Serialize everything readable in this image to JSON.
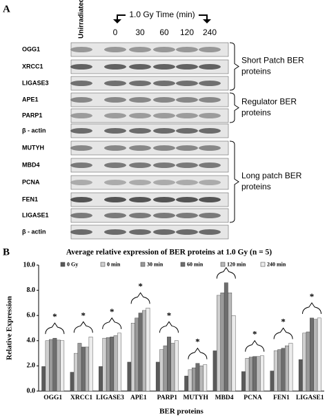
{
  "panel_a": {
    "label": "A",
    "unirradiated": "Unirradiated",
    "time_header": "1.0 Gy Time (min)",
    "times": [
      "0",
      "30",
      "60",
      "120",
      "240"
    ],
    "rows": [
      "OGG1",
      "XRCC1",
      "LIGASE3",
      "APE1",
      "PARP1",
      "β - actin",
      "MUTYH",
      "MBD4",
      "PCNA",
      "FEN1",
      "LIGASE1",
      "β - actin"
    ],
    "groups": [
      {
        "lines": [
          "Short Patch BER",
          "proteins"
        ]
      },
      {
        "lines": [
          "Regulator BER",
          "proteins"
        ]
      },
      {
        "lines": [
          "Long patch BER",
          "proteins"
        ]
      }
    ]
  },
  "panel_b_label": "B",
  "chart_data": {
    "type": "bar",
    "title": "Average relative expression of BER proteins at 1.0 Gy (n = 5)",
    "x_label": "BER proteins",
    "y_label": "Relative Expression",
    "categories": [
      "OGG1",
      "XRCC1",
      "LIGASE3",
      "APE1",
      "PARP1",
      "MUTYH",
      "MBD4",
      "PCNA",
      "FEN1",
      "LIGASE1"
    ],
    "series": [
      {
        "name": "0 Gy",
        "color": "#5a5a5a",
        "values": [
          1.95,
          1.5,
          1.95,
          2.3,
          2.3,
          1.2,
          3.2,
          1.55,
          1.6,
          2.5
        ]
      },
      {
        "name": "0 min",
        "color": "#cfcfcf",
        "values": [
          4.0,
          3.0,
          4.2,
          5.4,
          3.3,
          1.7,
          7.6,
          2.6,
          3.2,
          4.6
        ]
      },
      {
        "name": "30 min",
        "color": "#9a9a9a",
        "values": [
          4.1,
          3.8,
          4.25,
          5.8,
          3.6,
          1.85,
          7.8,
          2.7,
          3.3,
          4.7
        ]
      },
      {
        "name": "60 min",
        "color": "#6e6e6e",
        "values": [
          4.2,
          3.5,
          4.3,
          6.2,
          4.3,
          2.2,
          8.6,
          2.75,
          3.4,
          5.8
        ]
      },
      {
        "name": "120 min",
        "color": "#b8b8b8",
        "values": [
          4.05,
          3.5,
          4.4,
          6.4,
          3.8,
          2.0,
          7.8,
          2.75,
          3.6,
          5.7
        ]
      },
      {
        "name": "240 min",
        "color": "#ececec",
        "values": [
          4.0,
          4.3,
          4.6,
          6.6,
          4.0,
          2.1,
          6.0,
          2.8,
          3.8,
          5.8
        ]
      }
    ],
    "annotations": [
      "*",
      "*",
      "*",
      "*",
      "*",
      "*",
      null,
      "*",
      "*",
      "*"
    ],
    "ylim": [
      0,
      10
    ],
    "yticks": [
      {
        "value": 0,
        "label": "0.0"
      },
      {
        "value": 2,
        "label": "2.0"
      },
      {
        "value": 4,
        "label": "4.0"
      },
      {
        "value": 6,
        "label": "6.0"
      },
      {
        "value": 8,
        "label": "8.0"
      },
      {
        "value": 10,
        "label": "10.0"
      }
    ],
    "grid": false
  }
}
